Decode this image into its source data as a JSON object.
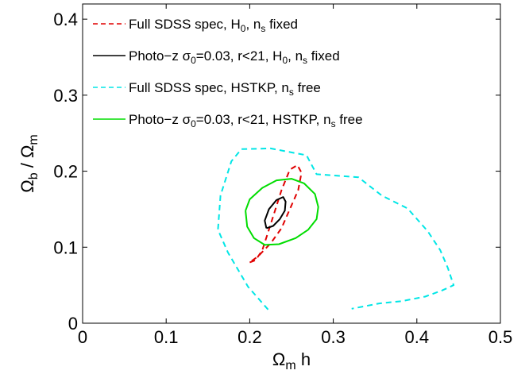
{
  "chart_data": {
    "type": "line",
    "xlabel_parts": {
      "main": "Ω",
      "sub": "m",
      "tail": " h"
    },
    "ylabel_parts": {
      "a": "Ω",
      "a_sub": "b",
      "mid": " / Ω",
      "b_sub": "m"
    },
    "xlim": [
      0,
      0.5
    ],
    "ylim": [
      0,
      0.42
    ],
    "xticks": [
      0,
      0.1,
      0.2,
      0.3,
      0.4,
      0.5
    ],
    "xtick_labels": [
      "0",
      "0.1",
      "0.2",
      "0.3",
      "0.4",
      "0.5"
    ],
    "yticks": [
      0,
      0.1,
      0.2,
      0.3,
      0.4
    ],
    "ytick_labels": [
      "0",
      "0.1",
      "0.2",
      "0.3",
      "0.4"
    ],
    "grid": false,
    "legend_position": "top-left",
    "series": [
      {
        "label_parts": [
          [
            "Full SDSS spec, H",
            ""
          ],
          [
            "0",
            "sub"
          ],
          [
            ", n",
            ""
          ],
          [
            "s",
            "sub"
          ],
          [
            " fixed",
            ""
          ]
        ],
        "color": "#e00000",
        "dash": "dashed",
        "points": [
          [
            0.2,
            0.08
          ],
          [
            0.207,
            0.083
          ],
          [
            0.215,
            0.096
          ],
          [
            0.225,
            0.13
          ],
          [
            0.238,
            0.175
          ],
          [
            0.248,
            0.202
          ],
          [
            0.257,
            0.208
          ],
          [
            0.262,
            0.198
          ],
          [
            0.258,
            0.175
          ],
          [
            0.248,
            0.15
          ],
          [
            0.238,
            0.125
          ],
          [
            0.225,
            0.105
          ],
          [
            0.21,
            0.088
          ],
          [
            0.2,
            0.08
          ]
        ]
      },
      {
        "label_parts": [
          [
            "Photo−z σ",
            ""
          ],
          [
            "0",
            "sub"
          ],
          [
            "=0.03, r<21, H",
            ""
          ],
          [
            "0",
            "sub"
          ],
          [
            ", n",
            ""
          ],
          [
            "s",
            "sub"
          ],
          [
            " fixed",
            ""
          ]
        ],
        "color": "#000000",
        "dash": "solid",
        "points": [
          [
            0.22,
            0.125
          ],
          [
            0.218,
            0.135
          ],
          [
            0.223,
            0.15
          ],
          [
            0.232,
            0.162
          ],
          [
            0.24,
            0.166
          ],
          [
            0.243,
            0.16
          ],
          [
            0.242,
            0.148
          ],
          [
            0.236,
            0.137
          ],
          [
            0.228,
            0.128
          ],
          [
            0.22,
            0.125
          ]
        ]
      },
      {
        "label_parts": [
          [
            "Full SDSS spec, HSTKP, n",
            ""
          ],
          [
            "s",
            "sub"
          ],
          [
            " free",
            ""
          ]
        ],
        "color": "#00e6e6",
        "dash": "dashed",
        "points": [
          [
            0.222,
            0.018
          ],
          [
            0.198,
            0.048
          ],
          [
            0.174,
            0.093
          ],
          [
            0.162,
            0.123
          ],
          [
            0.165,
            0.168
          ],
          [
            0.178,
            0.213
          ],
          [
            0.19,
            0.229
          ],
          [
            0.225,
            0.23
          ],
          [
            0.268,
            0.221
          ],
          [
            0.28,
            0.196
          ],
          [
            0.33,
            0.192
          ],
          [
            0.358,
            0.168
          ],
          [
            0.389,
            0.151
          ],
          [
            0.413,
            0.121
          ],
          [
            0.428,
            0.096
          ],
          [
            0.437,
            0.073
          ],
          [
            0.444,
            0.05
          ],
          [
            0.43,
            0.043
          ],
          [
            0.41,
            0.035
          ],
          [
            0.382,
            0.029
          ],
          [
            0.355,
            0.026
          ],
          [
            0.322,
            0.019
          ]
        ]
      },
      {
        "label_parts": [
          [
            "Photo−z σ",
            ""
          ],
          [
            "0",
            "sub"
          ],
          [
            "=0.03, r<21, HSTKP, n",
            ""
          ],
          [
            "s",
            "sub"
          ],
          [
            " free",
            ""
          ]
        ],
        "color": "#00dd00",
        "dash": "solid",
        "points": [
          [
            0.195,
            0.148
          ],
          [
            0.2,
            0.163
          ],
          [
            0.215,
            0.178
          ],
          [
            0.232,
            0.188
          ],
          [
            0.25,
            0.19
          ],
          [
            0.265,
            0.184
          ],
          [
            0.278,
            0.17
          ],
          [
            0.282,
            0.153
          ],
          [
            0.28,
            0.137
          ],
          [
            0.27,
            0.123
          ],
          [
            0.255,
            0.112
          ],
          [
            0.235,
            0.104
          ],
          [
            0.218,
            0.103
          ],
          [
            0.205,
            0.112
          ],
          [
            0.197,
            0.127
          ],
          [
            0.195,
            0.148
          ]
        ]
      }
    ]
  }
}
